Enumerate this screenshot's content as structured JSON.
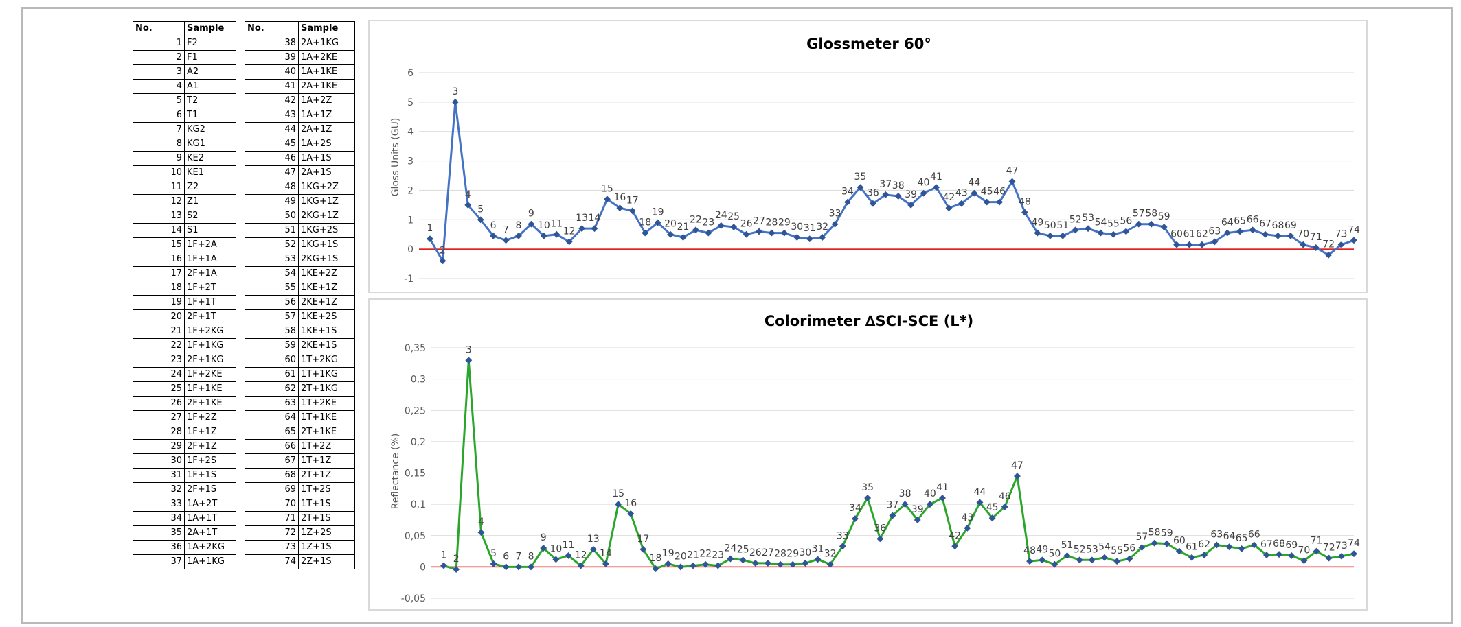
{
  "table": {
    "header_no": "No.",
    "header_sample": "Sample",
    "left_rows": [
      {
        "no": "1",
        "sample": "F2"
      },
      {
        "no": "2",
        "sample": "F1"
      },
      {
        "no": "3",
        "sample": "A2"
      },
      {
        "no": "4",
        "sample": "A1"
      },
      {
        "no": "5",
        "sample": "T2"
      },
      {
        "no": "6",
        "sample": "T1"
      },
      {
        "no": "7",
        "sample": "KG2"
      },
      {
        "no": "8",
        "sample": "KG1"
      },
      {
        "no": "9",
        "sample": "KE2"
      },
      {
        "no": "10",
        "sample": "KE1"
      },
      {
        "no": "11",
        "sample": "Z2"
      },
      {
        "no": "12",
        "sample": "Z1"
      },
      {
        "no": "13",
        "sample": "S2"
      },
      {
        "no": "14",
        "sample": "S1"
      },
      {
        "no": "15",
        "sample": "1F+2A"
      },
      {
        "no": "16",
        "sample": "1F+1A"
      },
      {
        "no": "17",
        "sample": "2F+1A"
      },
      {
        "no": "18",
        "sample": "1F+2T"
      },
      {
        "no": "19",
        "sample": "1F+1T"
      },
      {
        "no": "20",
        "sample": "2F+1T"
      },
      {
        "no": "21",
        "sample": "1F+2KG"
      },
      {
        "no": "22",
        "sample": "1F+1KG"
      },
      {
        "no": "23",
        "sample": "2F+1KG"
      },
      {
        "no": "24",
        "sample": "1F+2KE"
      },
      {
        "no": "25",
        "sample": "1F+1KE"
      },
      {
        "no": "26",
        "sample": "2F+1KE"
      },
      {
        "no": "27",
        "sample": "1F+2Z"
      },
      {
        "no": "28",
        "sample": "1F+1Z"
      },
      {
        "no": "29",
        "sample": "2F+1Z"
      },
      {
        "no": "30",
        "sample": "1F+2S"
      },
      {
        "no": "31",
        "sample": "1F+1S"
      },
      {
        "no": "32",
        "sample": "2F+1S"
      },
      {
        "no": "33",
        "sample": "1A+2T"
      },
      {
        "no": "34",
        "sample": "1A+1T"
      },
      {
        "no": "35",
        "sample": "2A+1T"
      },
      {
        "no": "36",
        "sample": "1A+2KG"
      },
      {
        "no": "37",
        "sample": "1A+1KG"
      }
    ],
    "right_rows": [
      {
        "no": "38",
        "sample": "2A+1KG"
      },
      {
        "no": "39",
        "sample": "1A+2KE"
      },
      {
        "no": "40",
        "sample": "1A+1KE"
      },
      {
        "no": "41",
        "sample": "2A+1KE"
      },
      {
        "no": "42",
        "sample": "1A+2Z"
      },
      {
        "no": "43",
        "sample": "1A+1Z"
      },
      {
        "no": "44",
        "sample": "2A+1Z"
      },
      {
        "no": "45",
        "sample": "1A+2S"
      },
      {
        "no": "46",
        "sample": "1A+1S"
      },
      {
        "no": "47",
        "sample": "2A+1S"
      },
      {
        "no": "48",
        "sample": "1KG+2Z"
      },
      {
        "no": "49",
        "sample": "1KG+1Z"
      },
      {
        "no": "50",
        "sample": "2KG+1Z"
      },
      {
        "no": "51",
        "sample": "1KG+2S"
      },
      {
        "no": "52",
        "sample": "1KG+1S"
      },
      {
        "no": "53",
        "sample": "2KG+1S"
      },
      {
        "no": "54",
        "sample": "1KE+2Z"
      },
      {
        "no": "55",
        "sample": "1KE+1Z"
      },
      {
        "no": "56",
        "sample": "2KE+1Z"
      },
      {
        "no": "57",
        "sample": "1KE+2S"
      },
      {
        "no": "58",
        "sample": "1KE+1S"
      },
      {
        "no": "59",
        "sample": "2KE+1S"
      },
      {
        "no": "60",
        "sample": "1T+2KG"
      },
      {
        "no": "61",
        "sample": "1T+1KG"
      },
      {
        "no": "62",
        "sample": "2T+1KG"
      },
      {
        "no": "63",
        "sample": "1T+2KE"
      },
      {
        "no": "64",
        "sample": "1T+1KE"
      },
      {
        "no": "65",
        "sample": "2T+1KE"
      },
      {
        "no": "66",
        "sample": "1T+2Z"
      },
      {
        "no": "67",
        "sample": "1T+1Z"
      },
      {
        "no": "68",
        "sample": "2T+1Z"
      },
      {
        "no": "69",
        "sample": "1T+2S"
      },
      {
        "no": "70",
        "sample": "1T+1S"
      },
      {
        "no": "71",
        "sample": "2T+1S"
      },
      {
        "no": "72",
        "sample": "1Z+2S"
      },
      {
        "no": "73",
        "sample": "1Z+1S"
      },
      {
        "no": "74",
        "sample": "2Z+1S"
      }
    ]
  },
  "chart_data": [
    {
      "type": "line",
      "title": "Glossmeter 60°",
      "ylabel": "Gloss Units (GU)",
      "xlabel": "",
      "ylim": [
        -1,
        6
      ],
      "yticks": [
        "-1",
        "0",
        "1",
        "2",
        "3",
        "4",
        "5",
        "6"
      ],
      "grid": true,
      "series_color": "#4472c4",
      "zero_line_color": "#e00000",
      "x": [
        1,
        2,
        3,
        4,
        5,
        6,
        7,
        8,
        9,
        10,
        11,
        12,
        13,
        14,
        15,
        16,
        17,
        18,
        19,
        20,
        21,
        22,
        23,
        24,
        25,
        26,
        27,
        28,
        29,
        30,
        31,
        32,
        33,
        34,
        35,
        36,
        37,
        38,
        39,
        40,
        41,
        42,
        43,
        44,
        45,
        46,
        47,
        48,
        49,
        50,
        51,
        52,
        53,
        54,
        55,
        56,
        57,
        58,
        59,
        60,
        61,
        62,
        63,
        64,
        65,
        66,
        67,
        68,
        69,
        70,
        71,
        72,
        73,
        74
      ],
      "values": [
        0.35,
        -0.4,
        5.0,
        1.5,
        1.0,
        0.45,
        0.3,
        0.45,
        0.85,
        0.45,
        0.5,
        0.25,
        0.7,
        0.7,
        1.7,
        1.4,
        1.3,
        0.55,
        0.9,
        0.5,
        0.4,
        0.65,
        0.55,
        0.8,
        0.75,
        0.5,
        0.6,
        0.55,
        0.55,
        0.4,
        0.35,
        0.4,
        0.85,
        1.6,
        2.1,
        1.55,
        1.85,
        1.8,
        1.5,
        1.9,
        2.1,
        1.4,
        1.55,
        1.9,
        1.6,
        1.6,
        2.3,
        1.25,
        0.55,
        0.45,
        0.45,
        0.65,
        0.7,
        0.55,
        0.5,
        0.6,
        0.85,
        0.85,
        0.75,
        0.15,
        0.15,
        0.15,
        0.25,
        0.55,
        0.6,
        0.65,
        0.5,
        0.45,
        0.45,
        0.15,
        0.05,
        -0.2,
        0.15,
        0.3
      ]
    },
    {
      "type": "line",
      "title": "Colorimeter ∆SCI-SCE (L*)",
      "ylabel": "Reflectance (%)",
      "xlabel": "",
      "ylim": [
        -0.05,
        0.35
      ],
      "yticks": [
        "-0,05",
        "0",
        "0,05",
        "0,1",
        "0,15",
        "0,2",
        "0,25",
        "0,3",
        "0,35"
      ],
      "grid": true,
      "series_color": "#2aa62a",
      "zero_line_color": "#e00000",
      "x": [
        1,
        2,
        3,
        4,
        5,
        6,
        7,
        8,
        9,
        10,
        11,
        12,
        13,
        14,
        15,
        16,
        17,
        18,
        19,
        20,
        21,
        22,
        23,
        24,
        25,
        26,
        27,
        28,
        29,
        30,
        31,
        32,
        33,
        34,
        35,
        36,
        37,
        38,
        39,
        40,
        41,
        42,
        43,
        44,
        45,
        46,
        47,
        48,
        49,
        50,
        51,
        52,
        53,
        54,
        55,
        56,
        57,
        58,
        59,
        60,
        61,
        62,
        63,
        64,
        65,
        66,
        67,
        68,
        69,
        70,
        71,
        72,
        73,
        74
      ],
      "values": [
        0.002,
        -0.004,
        0.33,
        0.055,
        0.005,
        0.0,
        0.0,
        0.0,
        0.03,
        0.012,
        0.018,
        0.002,
        0.028,
        0.005,
        0.1,
        0.085,
        0.028,
        -0.003,
        0.005,
        0.0,
        0.002,
        0.004,
        0.002,
        0.013,
        0.011,
        0.006,
        0.006,
        0.004,
        0.004,
        0.006,
        0.012,
        0.004,
        0.033,
        0.077,
        0.11,
        0.045,
        0.082,
        0.1,
        0.075,
        0.1,
        0.11,
        0.033,
        0.062,
        0.103,
        0.078,
        0.096,
        0.145,
        0.009,
        0.011,
        0.004,
        0.018,
        0.011,
        0.011,
        0.015,
        0.009,
        0.013,
        0.031,
        0.038,
        0.037,
        0.025,
        0.015,
        0.019,
        0.035,
        0.032,
        0.029,
        0.035,
        0.019,
        0.02,
        0.018,
        0.01,
        0.025,
        0.014,
        0.017,
        0.021
      ]
    }
  ]
}
